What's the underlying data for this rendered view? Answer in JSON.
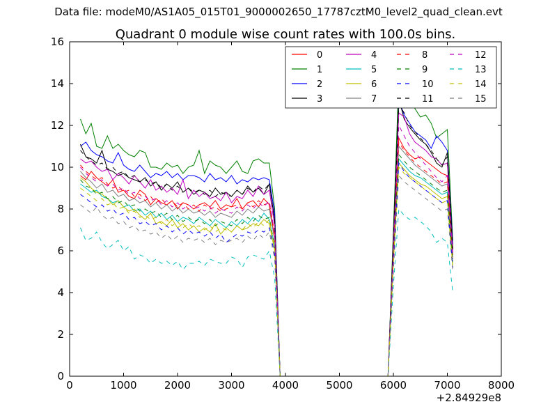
{
  "figure": {
    "suptitle": "Data file: modeM0/AS1A05_015T01_9000002650_17787cztM0_level2_quad_clean.evt"
  },
  "chart_data": {
    "type": "line",
    "title": "Quadrant 0 module wise count rates with 100.0s bins.",
    "xlabel": "",
    "ylabel": "",
    "x_offset_label": "+2.84929e8",
    "xlim": [
      0,
      8000
    ],
    "ylim": [
      0,
      16
    ],
    "xticks": [
      0,
      1000,
      2000,
      3000,
      4000,
      5000,
      6000,
      7000,
      8000
    ],
    "yticks": [
      0,
      2,
      4,
      6,
      8,
      10,
      12,
      14,
      16
    ],
    "grid": false,
    "legend_position": "top-right",
    "legend_columns": 4,
    "x": [
      200,
      300,
      400,
      500,
      600,
      700,
      800,
      900,
      1000,
      1100,
      1200,
      1300,
      1400,
      1500,
      1600,
      1700,
      1800,
      1900,
      2000,
      2100,
      2200,
      2300,
      2400,
      2500,
      2600,
      2700,
      2800,
      2900,
      3000,
      3100,
      3200,
      3300,
      3400,
      3500,
      3600,
      3700,
      3800,
      3900,
      4000,
      4100,
      4200,
      4300,
      4400,
      4500,
      4600,
      4700,
      4800,
      4900,
      5000,
      5100,
      5200,
      5300,
      5400,
      5500,
      5600,
      5700,
      5800,
      5900,
      6000,
      6100,
      6200,
      6300,
      6400,
      6500,
      6600,
      6700,
      6800,
      6900,
      7000,
      7100
    ],
    "series": [
      {
        "name": "0",
        "color": "#ff0000",
        "dash": "solid",
        "values": [
          9.6,
          9.4,
          9.8,
          9.5,
          9.3,
          9.1,
          9.4,
          8.8,
          8.9,
          8.6,
          8.5,
          8.9,
          8.7,
          8.2,
          8.5,
          8.3,
          8.2,
          8.4,
          8.0,
          8.3,
          8.2,
          8.0,
          8.2,
          8.3,
          8.1,
          8.4,
          8.0,
          8.2,
          8.1,
          8.5,
          8.0,
          8.3,
          8.4,
          8.1,
          8.5,
          8.2,
          6.6,
          0,
          0,
          0,
          0,
          0,
          0,
          0,
          0,
          0,
          0,
          0,
          0,
          0,
          0,
          0,
          0,
          0,
          0,
          0,
          0,
          0,
          6.1,
          11.4,
          10.9,
          10.6,
          10.4,
          10.5,
          10.3,
          10.1,
          9.9,
          9.7,
          9.6,
          6.1
        ]
      },
      {
        "name": "1",
        "color": "#008000",
        "dash": "solid",
        "values": [
          12.3,
          11.6,
          12.1,
          11.0,
          10.9,
          11.5,
          10.9,
          11.1,
          10.8,
          10.6,
          10.5,
          10.8,
          10.7,
          10.0,
          10.0,
          9.9,
          10.2,
          10.0,
          10.1,
          9.7,
          10.0,
          10.1,
          10.8,
          9.7,
          10.3,
          10.1,
          10.0,
          9.7,
          10.0,
          10.3,
          9.8,
          9.7,
          10.3,
          10.4,
          10.2,
          10.2,
          8.0,
          0,
          0,
          0,
          0,
          0,
          0,
          0,
          0,
          0,
          0,
          0,
          0,
          0,
          0,
          0,
          0,
          0,
          0,
          0,
          0,
          0,
          7.0,
          14.3,
          13.2,
          13.9,
          12.8,
          12.4,
          12.5,
          12.1,
          11.4,
          11.6,
          11.8,
          6.5
        ]
      },
      {
        "name": "2",
        "color": "#0000ff",
        "dash": "solid",
        "values": [
          11.0,
          11.2,
          10.8,
          10.6,
          10.5,
          10.3,
          10.2,
          10.7,
          10.1,
          9.9,
          9.8,
          10.1,
          9.8,
          9.5,
          9.7,
          9.6,
          9.8,
          9.5,
          9.7,
          9.4,
          9.6,
          9.6,
          9.5,
          9.3,
          9.7,
          9.4,
          9.5,
          9.3,
          9.6,
          9.2,
          9.4,
          9.3,
          9.5,
          9.4,
          9.5,
          9.4,
          7.8,
          0,
          0,
          0,
          0,
          0,
          0,
          0,
          0,
          0,
          0,
          0,
          0,
          0,
          0,
          0,
          0,
          0,
          0,
          0,
          0,
          0,
          6.5,
          13.2,
          12.5,
          12.1,
          11.7,
          11.5,
          11.3,
          10.9,
          11.5,
          11.2,
          10.8,
          6.3
        ]
      },
      {
        "name": "3",
        "color": "#000000",
        "dash": "solid",
        "values": [
          11.1,
          10.5,
          10.4,
          10.2,
          10.8,
          9.9,
          9.8,
          9.6,
          9.7,
          9.5,
          9.4,
          9.3,
          9.5,
          9.1,
          9.3,
          8.9,
          9.2,
          9.0,
          9.3,
          8.8,
          9.0,
          8.7,
          8.9,
          8.8,
          8.6,
          9.0,
          8.7,
          8.8,
          8.6,
          8.9,
          8.7,
          9.1,
          8.8,
          9.0,
          8.7,
          9.2,
          7.5,
          0,
          0,
          0,
          0,
          0,
          0,
          0,
          0,
          0,
          0,
          0,
          0,
          0,
          0,
          0,
          0,
          0,
          0,
          0,
          0,
          0,
          6.6,
          13.3,
          12.3,
          11.9,
          11.6,
          11.3,
          11.1,
          10.7,
          10.2,
          10.0,
          10.7,
          6.1
        ]
      },
      {
        "name": "4",
        "color": "#bf00bf",
        "dash": "solid",
        "values": [
          10.4,
          10.2,
          10.3,
          10.0,
          9.8,
          9.9,
          9.4,
          9.7,
          9.5,
          9.2,
          9.6,
          9.3,
          9.0,
          9.4,
          8.9,
          9.1,
          8.8,
          9.0,
          8.7,
          9.4,
          8.5,
          8.9,
          8.6,
          8.8,
          8.5,
          8.6,
          8.4,
          8.8,
          8.3,
          8.6,
          8.5,
          8.9,
          8.6,
          9.1,
          8.7,
          8.9,
          7.2,
          0,
          0,
          0,
          0,
          0,
          0,
          0,
          0,
          0,
          0,
          0,
          0,
          0,
          0,
          0,
          0,
          0,
          0,
          0,
          0,
          0,
          6.3,
          12.6,
          12.4,
          11.6,
          11.2,
          11.0,
          10.8,
          10.5,
          10.4,
          10.1,
          10.2,
          5.9
        ]
      },
      {
        "name": "5",
        "color": "#00bfbf",
        "dash": "solid",
        "values": [
          9.2,
          9.0,
          8.8,
          8.9,
          8.6,
          8.5,
          8.3,
          8.4,
          8.1,
          8.2,
          7.9,
          8.0,
          7.7,
          7.9,
          7.6,
          7.8,
          7.5,
          7.7,
          7.4,
          7.6,
          7.5,
          7.3,
          7.6,
          7.4,
          7.2,
          7.5,
          7.3,
          7.1,
          7.4,
          7.2,
          7.5,
          7.3,
          7.6,
          7.4,
          7.8,
          7.5,
          6.2,
          0,
          0,
          0,
          0,
          0,
          0,
          0,
          0,
          0,
          0,
          0,
          0,
          0,
          0,
          0,
          0,
          0,
          0,
          0,
          0,
          0,
          5.6,
          10.4,
          10.1,
          9.8,
          9.6,
          9.5,
          9.3,
          9.1,
          8.9,
          8.7,
          8.8,
          5.4
        ]
      },
      {
        "name": "6",
        "color": "#bfbf00",
        "dash": "solid",
        "values": [
          9.5,
          9.3,
          9.0,
          8.8,
          8.7,
          8.5,
          8.2,
          8.4,
          8.1,
          7.9,
          8.0,
          7.7,
          7.5,
          7.8,
          7.3,
          7.4,
          7.2,
          7.5,
          7.1,
          7.3,
          7.0,
          7.2,
          6.9,
          7.1,
          6.9,
          7.3,
          6.8,
          7.1,
          6.9,
          7.2,
          7.0,
          7.1,
          7.3,
          7.2,
          7.5,
          7.3,
          6.0,
          0,
          0,
          0,
          0,
          0,
          0,
          0,
          0,
          0,
          0,
          0,
          0,
          0,
          0,
          0,
          0,
          0,
          0,
          0,
          0,
          0,
          5.4,
          10.2,
          9.9,
          9.6,
          9.4,
          9.2,
          9.1,
          8.9,
          8.7,
          8.5,
          8.6,
          5.3
        ]
      },
      {
        "name": "7",
        "color": "#808080",
        "dash": "solid",
        "values": [
          9.8,
          9.5,
          9.3,
          9.0,
          9.2,
          8.8,
          8.9,
          8.6,
          8.7,
          8.4,
          8.5,
          8.3,
          8.4,
          8.1,
          8.3,
          8.0,
          8.2,
          7.9,
          8.1,
          7.8,
          8.0,
          7.8,
          7.9,
          7.7,
          7.9,
          7.6,
          7.8,
          7.7,
          7.6,
          7.9,
          7.7,
          8.0,
          7.8,
          8.1,
          7.9,
          8.0,
          6.5,
          0,
          0,
          0,
          0,
          0,
          0,
          0,
          0,
          0,
          0,
          0,
          0,
          0,
          0,
          0,
          0,
          0,
          0,
          0,
          0,
          0,
          5.8,
          11.0,
          10.7,
          10.4,
          10.1,
          9.9,
          9.7,
          9.5,
          9.3,
          9.1,
          9.2,
          5.6
        ]
      },
      {
        "name": "8",
        "color": "#ff0000",
        "dash": "dashed",
        "values": [
          10.1,
          9.8,
          9.6,
          9.4,
          9.5,
          9.2,
          9.0,
          9.1,
          8.8,
          8.9,
          8.6,
          8.7,
          8.4,
          8.6,
          8.3,
          8.5,
          8.2,
          8.4,
          8.1,
          8.3,
          8.0,
          8.2,
          7.9,
          8.2,
          8.0,
          8.1,
          7.9,
          8.0,
          8.1,
          8.2,
          8.0,
          8.3,
          8.1,
          8.4,
          8.2,
          8.3,
          6.8,
          0,
          0,
          0,
          0,
          0,
          0,
          0,
          0,
          0,
          0,
          0,
          0,
          0,
          0,
          0,
          0,
          0,
          0,
          0,
          0,
          0,
          6.0,
          11.2,
          10.8,
          10.5,
          10.2,
          10.0,
          9.8,
          9.6,
          9.4,
          9.2,
          9.3,
          5.8
        ]
      },
      {
        "name": "9",
        "color": "#008000",
        "dash": "dashed",
        "values": [
          9.4,
          9.1,
          9.0,
          8.7,
          8.8,
          8.5,
          8.6,
          8.3,
          8.4,
          8.1,
          8.2,
          7.9,
          8.0,
          7.8,
          7.9,
          7.6,
          7.8,
          7.5,
          7.7,
          7.4,
          7.6,
          7.4,
          7.5,
          7.3,
          7.5,
          7.2,
          7.4,
          7.3,
          7.2,
          7.5,
          7.3,
          7.6,
          7.4,
          7.7,
          7.5,
          7.6,
          6.2,
          0,
          0,
          0,
          0,
          0,
          0,
          0,
          0,
          0,
          0,
          0,
          0,
          0,
          0,
          0,
          0,
          0,
          0,
          0,
          0,
          0,
          5.6,
          10.6,
          10.3,
          10.0,
          9.8,
          9.6,
          9.4,
          9.2,
          9.0,
          8.8,
          8.9,
          5.5
        ]
      },
      {
        "name": "10",
        "color": "#0000ff",
        "dash": "dashed",
        "values": [
          8.7,
          8.5,
          8.3,
          8.1,
          8.2,
          7.9,
          8.0,
          7.7,
          7.8,
          7.5,
          7.6,
          7.3,
          7.4,
          7.2,
          7.3,
          7.0,
          7.2,
          6.9,
          7.1,
          6.8,
          7.0,
          6.8,
          6.9,
          6.7,
          6.9,
          6.6,
          6.8,
          6.4,
          6.6,
          6.8,
          6.7,
          6.9,
          6.8,
          7.0,
          6.9,
          7.1,
          5.8,
          0,
          0,
          0,
          0,
          0,
          0,
          0,
          0,
          0,
          0,
          0,
          0,
          0,
          0,
          0,
          0,
          0,
          0,
          0,
          0,
          0,
          5.2,
          10.2,
          9.8,
          9.5,
          9.3,
          9.1,
          8.9,
          8.7,
          8.5,
          8.3,
          8.4,
          5.2
        ]
      },
      {
        "name": "11",
        "color": "#000000",
        "dash": "dashed",
        "values": [
          10.8,
          10.5,
          10.3,
          10.1,
          10.2,
          9.9,
          10.0,
          9.7,
          9.8,
          9.5,
          9.6,
          9.3,
          9.4,
          9.2,
          9.3,
          9.0,
          9.2,
          8.9,
          9.1,
          8.8,
          9.0,
          8.8,
          8.9,
          8.7,
          8.9,
          8.6,
          8.8,
          8.7,
          8.6,
          8.9,
          8.7,
          9.0,
          8.8,
          9.1,
          8.9,
          9.2,
          7.4,
          0,
          0,
          0,
          0,
          0,
          0,
          0,
          0,
          0,
          0,
          0,
          0,
          0,
          0,
          0,
          0,
          0,
          0,
          0,
          0,
          0,
          6.4,
          13.0,
          12.6,
          12.0,
          11.7,
          11.4,
          11.1,
          10.8,
          10.4,
          10.1,
          10.5,
          6.0
        ]
      },
      {
        "name": "12",
        "color": "#bf00bf",
        "dash": "dashed",
        "values": [
          10.0,
          9.7,
          9.5,
          9.3,
          9.4,
          9.1,
          9.2,
          8.9,
          9.0,
          8.7,
          8.8,
          8.5,
          8.6,
          8.4,
          8.5,
          8.2,
          8.4,
          8.1,
          8.3,
          8.0,
          8.2,
          8.0,
          8.1,
          7.9,
          8.1,
          7.8,
          8.0,
          7.9,
          7.8,
          8.1,
          7.9,
          8.2,
          8.0,
          8.3,
          8.1,
          8.4,
          6.8,
          0,
          0,
          0,
          0,
          0,
          0,
          0,
          0,
          0,
          0,
          0,
          0,
          0,
          0,
          0,
          0,
          0,
          0,
          0,
          0,
          0,
          5.9,
          12.0,
          11.5,
          11.0,
          10.7,
          10.4,
          10.1,
          9.8,
          9.5,
          9.3,
          9.6,
          5.7
        ]
      },
      {
        "name": "13",
        "color": "#00bfbf",
        "dash": "dashed",
        "values": [
          7.1,
          6.5,
          6.6,
          6.9,
          6.4,
          6.1,
          6.3,
          6.5,
          6.0,
          6.2,
          5.6,
          5.8,
          5.7,
          5.4,
          5.6,
          5.4,
          5.5,
          5.3,
          5.5,
          5.1,
          5.4,
          5.4,
          5.5,
          5.3,
          5.6,
          5.5,
          5.4,
          5.4,
          5.7,
          5.6,
          5.2,
          5.7,
          5.8,
          5.7,
          5.6,
          6.0,
          4.7,
          0,
          0,
          0,
          0,
          0,
          0,
          0,
          0,
          0,
          0,
          0,
          0,
          0,
          0,
          0,
          0,
          0,
          0,
          0,
          0,
          0,
          4.3,
          8.0,
          7.7,
          7.5,
          7.6,
          7.4,
          7.2,
          6.9,
          6.4,
          6.6,
          6.4,
          4.0
        ]
      },
      {
        "name": "14",
        "color": "#bfbf00",
        "dash": "dashed",
        "values": [
          9.0,
          8.8,
          8.6,
          8.4,
          8.5,
          8.2,
          8.3,
          8.0,
          8.1,
          7.8,
          7.9,
          7.6,
          7.7,
          7.5,
          7.6,
          7.3,
          7.5,
          7.2,
          7.4,
          7.1,
          7.3,
          7.1,
          7.2,
          7.0,
          7.2,
          6.9,
          7.1,
          7.0,
          6.9,
          7.2,
          7.0,
          7.3,
          7.1,
          7.4,
          7.2,
          7.5,
          6.1,
          0,
          0,
          0,
          0,
          0,
          0,
          0,
          0,
          0,
          0,
          0,
          0,
          0,
          0,
          0,
          0,
          0,
          0,
          0,
          0,
          0,
          5.5,
          10.0,
          9.7,
          9.5,
          9.3,
          9.1,
          8.9,
          8.7,
          8.5,
          8.3,
          8.4,
          5.2
        ]
      },
      {
        "name": "15",
        "color": "#808080",
        "dash": "dashed",
        "values": [
          8.2,
          8.0,
          7.8,
          8.1,
          7.7,
          7.5,
          7.6,
          7.3,
          7.4,
          7.1,
          7.2,
          6.9,
          7.0,
          6.8,
          6.9,
          6.6,
          6.8,
          6.5,
          6.7,
          6.4,
          6.6,
          6.5,
          6.6,
          6.4,
          6.6,
          6.3,
          6.5,
          6.4,
          6.5,
          6.6,
          6.4,
          6.7,
          6.5,
          6.8,
          6.6,
          6.9,
          5.6,
          0,
          0,
          0,
          0,
          0,
          0,
          0,
          0,
          0,
          0,
          0,
          0,
          0,
          0,
          0,
          0,
          0,
          0,
          0,
          0,
          0,
          5.0,
          9.6,
          9.3,
          9.1,
          8.9,
          8.7,
          8.5,
          8.3,
          8.1,
          7.9,
          8.0,
          5.0
        ]
      }
    ]
  }
}
